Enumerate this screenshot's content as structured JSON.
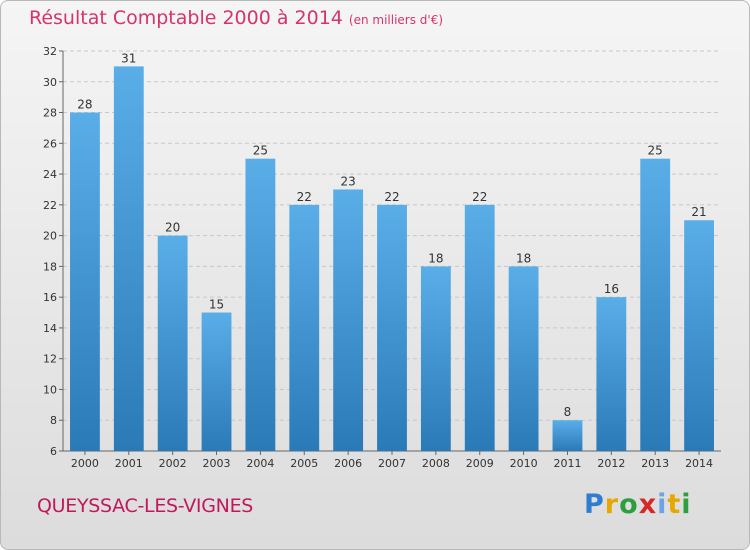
{
  "title": "Résultat Comptable 2000 à 2014",
  "subtitle": "(en milliers d'€)",
  "town": "QUEYSSAC-LES-VIGNES",
  "logo": {
    "letters": [
      "P",
      "r",
      "o",
      "x",
      "i",
      "t",
      "i"
    ]
  },
  "colors": {
    "title": "#d6336c",
    "town": "#c2185b",
    "bar_top": "#5aaee8",
    "bar_bottom": "#2a7ab8"
  },
  "chart_data": {
    "type": "bar",
    "categories": [
      "2000",
      "2001",
      "2002",
      "2003",
      "2004",
      "2005",
      "2006",
      "2007",
      "2008",
      "2009",
      "2010",
      "2011",
      "2012",
      "2013",
      "2014"
    ],
    "values": [
      28,
      31,
      20,
      15,
      25,
      22,
      23,
      22,
      18,
      22,
      18,
      8,
      16,
      25,
      21
    ],
    "title": "Résultat Comptable 2000 à 2014",
    "xlabel": "",
    "ylabel": "",
    "ylim": [
      6,
      32
    ],
    "yticks": [
      6,
      8,
      10,
      12,
      14,
      16,
      18,
      20,
      22,
      24,
      26,
      28,
      30,
      32
    ],
    "grid": true,
    "legend": "none"
  }
}
